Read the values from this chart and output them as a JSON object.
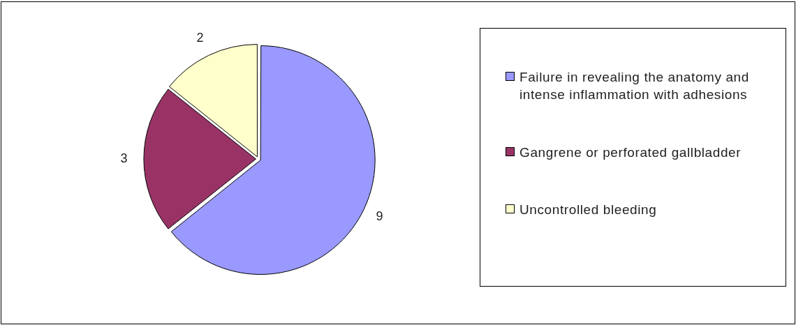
{
  "chart_data": {
    "type": "pie",
    "categories": [
      "Failure in revealing the anatomy and intense inflammation with adhesions",
      "Gangrene or perforated gallbladder",
      "Uncontrolled bleeding"
    ],
    "values": [
      9,
      3,
      2
    ],
    "colors": [
      "#9999ff",
      "#993366",
      "#ffffcc"
    ],
    "data_labels": true,
    "legend": "right"
  }
}
